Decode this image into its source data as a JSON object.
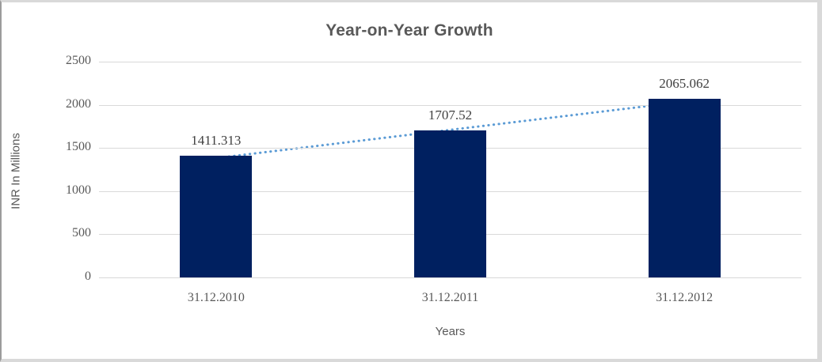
{
  "chart_data": {
    "type": "bar",
    "title": "Year-on-Year Growth",
    "xlabel": "Years",
    "ylabel": "INR In Millions",
    "categories": [
      "31.12.2010",
      "31.12.2011",
      "31.12.2012"
    ],
    "series": [
      {
        "name": "INR In Millions",
        "values": [
          1411.313,
          1707.52,
          2065.062
        ]
      }
    ],
    "data_labels": [
      "1411.313",
      "1707.52",
      "2065.062"
    ],
    "yticks": [
      0,
      500,
      1000,
      1500,
      2000,
      2500
    ],
    "ylim": [
      0,
      2500
    ],
    "grid": "horizontal",
    "legend": "none",
    "trendline": {
      "present": true,
      "style": "dotted",
      "color": "#5b9bd5"
    },
    "colors": {
      "bar": "#002060",
      "trend": "#5b9bd5",
      "gridline": "#d9d9d9",
      "axis_text": "#595959",
      "data_label_text": "#404040",
      "title_text": "#595959",
      "frame_border": "#d9d9d9"
    }
  }
}
